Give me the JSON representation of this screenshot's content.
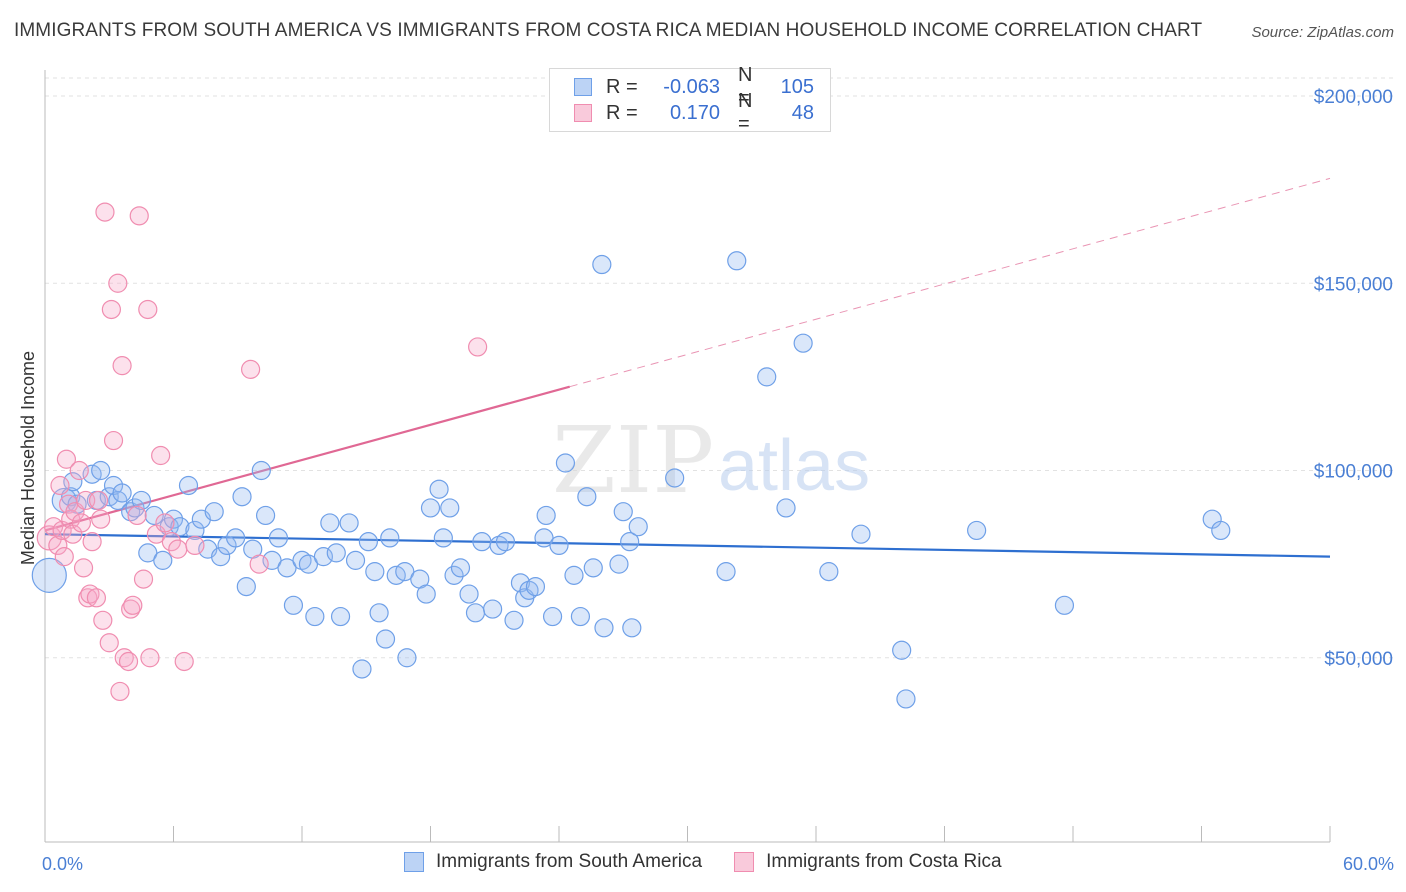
{
  "header": {
    "title": "IMMIGRANTS FROM SOUTH AMERICA VS IMMIGRANTS FROM COSTA RICA MEDIAN HOUSEHOLD INCOME CORRELATION CHART",
    "source": "Source: ZipAtlas.com"
  },
  "watermark": {
    "zip": "ZIP",
    "atlas": "atlas"
  },
  "legend": {
    "rows": [
      {
        "r_label": "R =",
        "r_value": "-0.063",
        "n_label": "N =",
        "n_value": "105",
        "color": "#6fa0e8"
      },
      {
        "r_label": "R =",
        "r_value": "0.170",
        "n_label": "N =",
        "n_value": "48",
        "color": "#f08db0"
      }
    ]
  },
  "bottom_legend": {
    "items": [
      {
        "label": "Immigrants from South America",
        "color": "#6fa0e8"
      },
      {
        "label": "Immigrants from Costa Rica",
        "color": "#f08db0"
      }
    ]
  },
  "chart_data": {
    "type": "scatter",
    "ylabel": "Median Household Income",
    "xlim": [
      0,
      60
    ],
    "ylim": [
      0,
      210000
    ],
    "x_tick_labels": [
      "0.0%",
      "60.0%"
    ],
    "y_ticks": [
      {
        "value": 50000,
        "label": "$50,000"
      },
      {
        "value": 100000,
        "label": "$100,000"
      },
      {
        "value": 150000,
        "label": "$150,000"
      },
      {
        "value": 200000,
        "label": "$200,000"
      }
    ],
    "grid": true,
    "series": [
      {
        "name": "Immigrants from South America",
        "color": "#6fa0e8",
        "trend": {
          "x": [
            0,
            60
          ],
          "y": [
            83000,
            77000
          ],
          "solid_to": 60
        },
        "points": [
          [
            0.2,
            72000,
            3
          ],
          [
            0.9,
            92000,
            2
          ],
          [
            1.2,
            93000,
            1
          ],
          [
            1.3,
            97000,
            1
          ],
          [
            1.5,
            91000,
            1
          ],
          [
            2.2,
            99000,
            1
          ],
          [
            2.4,
            92000,
            1
          ],
          [
            2.6,
            100000,
            1
          ],
          [
            3.0,
            93000,
            1
          ],
          [
            3.2,
            96000,
            1
          ],
          [
            3.4,
            92000,
            1
          ],
          [
            3.6,
            94000,
            1
          ],
          [
            4.0,
            89000,
            1
          ],
          [
            4.2,
            90000,
            1
          ],
          [
            4.5,
            92000,
            1
          ],
          [
            4.8,
            78000,
            1
          ],
          [
            5.1,
            88000,
            1
          ],
          [
            5.5,
            76000,
            1
          ],
          [
            5.8,
            85000,
            1
          ],
          [
            6.0,
            87000,
            1
          ],
          [
            6.3,
            85000,
            1
          ],
          [
            6.7,
            96000,
            1
          ],
          [
            7.0,
            84000,
            1
          ],
          [
            7.3,
            87000,
            1
          ],
          [
            7.6,
            79000,
            1
          ],
          [
            7.9,
            89000,
            1
          ],
          [
            8.2,
            77000,
            1
          ],
          [
            8.5,
            80000,
            1
          ],
          [
            8.9,
            82000,
            1
          ],
          [
            9.2,
            93000,
            1
          ],
          [
            9.4,
            69000,
            1
          ],
          [
            9.7,
            79000,
            1
          ],
          [
            10.1,
            100000,
            1
          ],
          [
            10.3,
            88000,
            1
          ],
          [
            10.6,
            76000,
            1
          ],
          [
            10.9,
            82000,
            1
          ],
          [
            11.3,
            74000,
            1
          ],
          [
            11.6,
            64000,
            1
          ],
          [
            12.0,
            76000,
            1
          ],
          [
            12.3,
            75000,
            1
          ],
          [
            12.6,
            61000,
            1
          ],
          [
            13.0,
            77000,
            1
          ],
          [
            13.3,
            86000,
            1
          ],
          [
            13.6,
            78000,
            1
          ],
          [
            13.8,
            61000,
            1
          ],
          [
            14.2,
            86000,
            1
          ],
          [
            14.5,
            76000,
            1
          ],
          [
            14.8,
            47000,
            1
          ],
          [
            15.1,
            81000,
            1
          ],
          [
            15.4,
            73000,
            1
          ],
          [
            15.6,
            62000,
            1
          ],
          [
            15.9,
            55000,
            1
          ],
          [
            16.1,
            82000,
            1
          ],
          [
            16.4,
            72000,
            1
          ],
          [
            16.8,
            73000,
            1
          ],
          [
            16.9,
            50000,
            1
          ],
          [
            17.5,
            71000,
            1
          ],
          [
            17.8,
            67000,
            1
          ],
          [
            18.0,
            90000,
            1
          ],
          [
            18.4,
            95000,
            1
          ],
          [
            18.6,
            82000,
            1
          ],
          [
            18.9,
            90000,
            1
          ],
          [
            19.1,
            72000,
            1
          ],
          [
            19.4,
            74000,
            1
          ],
          [
            19.8,
            67000,
            1
          ],
          [
            20.1,
            62000,
            1
          ],
          [
            20.4,
            81000,
            1
          ],
          [
            20.9,
            63000,
            1
          ],
          [
            21.2,
            80000,
            1
          ],
          [
            21.5,
            81000,
            1
          ],
          [
            21.9,
            60000,
            1
          ],
          [
            22.2,
            70000,
            1
          ],
          [
            22.4,
            66000,
            1
          ],
          [
            22.6,
            68000,
            1
          ],
          [
            22.9,
            69000,
            1
          ],
          [
            23.3,
            82000,
            1
          ],
          [
            23.4,
            88000,
            1
          ],
          [
            23.7,
            61000,
            1
          ],
          [
            24.0,
            80000,
            1
          ],
          [
            24.3,
            102000,
            1
          ],
          [
            24.7,
            72000,
            1
          ],
          [
            25.0,
            61000,
            1
          ],
          [
            25.3,
            93000,
            1
          ],
          [
            25.6,
            74000,
            1
          ],
          [
            26.0,
            155000,
            1
          ],
          [
            26.1,
            58000,
            1
          ],
          [
            26.8,
            75000,
            1
          ],
          [
            27.0,
            89000,
            1
          ],
          [
            27.3,
            81000,
            1
          ],
          [
            27.4,
            58000,
            1
          ],
          [
            27.7,
            85000,
            1
          ],
          [
            29.4,
            98000,
            1
          ],
          [
            31.8,
            73000,
            1
          ],
          [
            32.3,
            156000,
            1
          ],
          [
            33.7,
            125000,
            1
          ],
          [
            34.6,
            90000,
            1
          ],
          [
            35.4,
            134000,
            1
          ],
          [
            36.6,
            73000,
            1
          ],
          [
            38.1,
            83000,
            1
          ],
          [
            40.0,
            52000,
            1
          ],
          [
            40.2,
            39000,
            1
          ],
          [
            43.5,
            84000,
            1
          ],
          [
            47.6,
            64000,
            1
          ],
          [
            54.5,
            87000,
            1
          ],
          [
            54.9,
            84000,
            1
          ]
        ]
      },
      {
        "name": "Immigrants from Costa Rica",
        "color": "#f08db0",
        "trend": {
          "x": [
            0,
            60
          ],
          "y": [
            84000,
            178000
          ],
          "solid_to": 24.5
        },
        "points": [
          [
            0.2,
            82000,
            2
          ],
          [
            0.4,
            85000,
            1
          ],
          [
            0.6,
            80000,
            1
          ],
          [
            0.7,
            96000,
            1
          ],
          [
            0.8,
            84000,
            1
          ],
          [
            0.9,
            77000,
            1
          ],
          [
            1.0,
            103000,
            1
          ],
          [
            1.1,
            91000,
            1
          ],
          [
            1.2,
            87000,
            1
          ],
          [
            1.3,
            83000,
            1
          ],
          [
            1.4,
            89000,
            1
          ],
          [
            1.6,
            100000,
            1
          ],
          [
            1.7,
            86000,
            1
          ],
          [
            1.8,
            74000,
            1
          ],
          [
            1.9,
            92000,
            1
          ],
          [
            2.0,
            66000,
            1
          ],
          [
            2.1,
            67000,
            1
          ],
          [
            2.2,
            81000,
            1
          ],
          [
            2.4,
            66000,
            1
          ],
          [
            2.5,
            92000,
            1
          ],
          [
            2.6,
            87000,
            1
          ],
          [
            2.7,
            60000,
            1
          ],
          [
            2.8,
            169000,
            1
          ],
          [
            3.0,
            54000,
            1
          ],
          [
            3.1,
            143000,
            1
          ],
          [
            3.2,
            108000,
            1
          ],
          [
            3.4,
            150000,
            1
          ],
          [
            3.5,
            41000,
            1
          ],
          [
            3.6,
            128000,
            1
          ],
          [
            3.7,
            50000,
            1
          ],
          [
            3.9,
            49000,
            1
          ],
          [
            4.0,
            63000,
            1
          ],
          [
            4.1,
            64000,
            1
          ],
          [
            4.3,
            88000,
            1
          ],
          [
            4.4,
            168000,
            1
          ],
          [
            4.6,
            71000,
            1
          ],
          [
            4.8,
            143000,
            1
          ],
          [
            4.9,
            50000,
            1
          ],
          [
            5.2,
            83000,
            1
          ],
          [
            5.4,
            104000,
            1
          ],
          [
            5.6,
            86000,
            1
          ],
          [
            5.9,
            81000,
            1
          ],
          [
            6.2,
            79000,
            1
          ],
          [
            6.5,
            49000,
            1
          ],
          [
            7.0,
            80000,
            1
          ],
          [
            9.6,
            127000,
            1
          ],
          [
            10.0,
            75000,
            1
          ],
          [
            20.2,
            133000,
            1
          ]
        ]
      }
    ]
  }
}
